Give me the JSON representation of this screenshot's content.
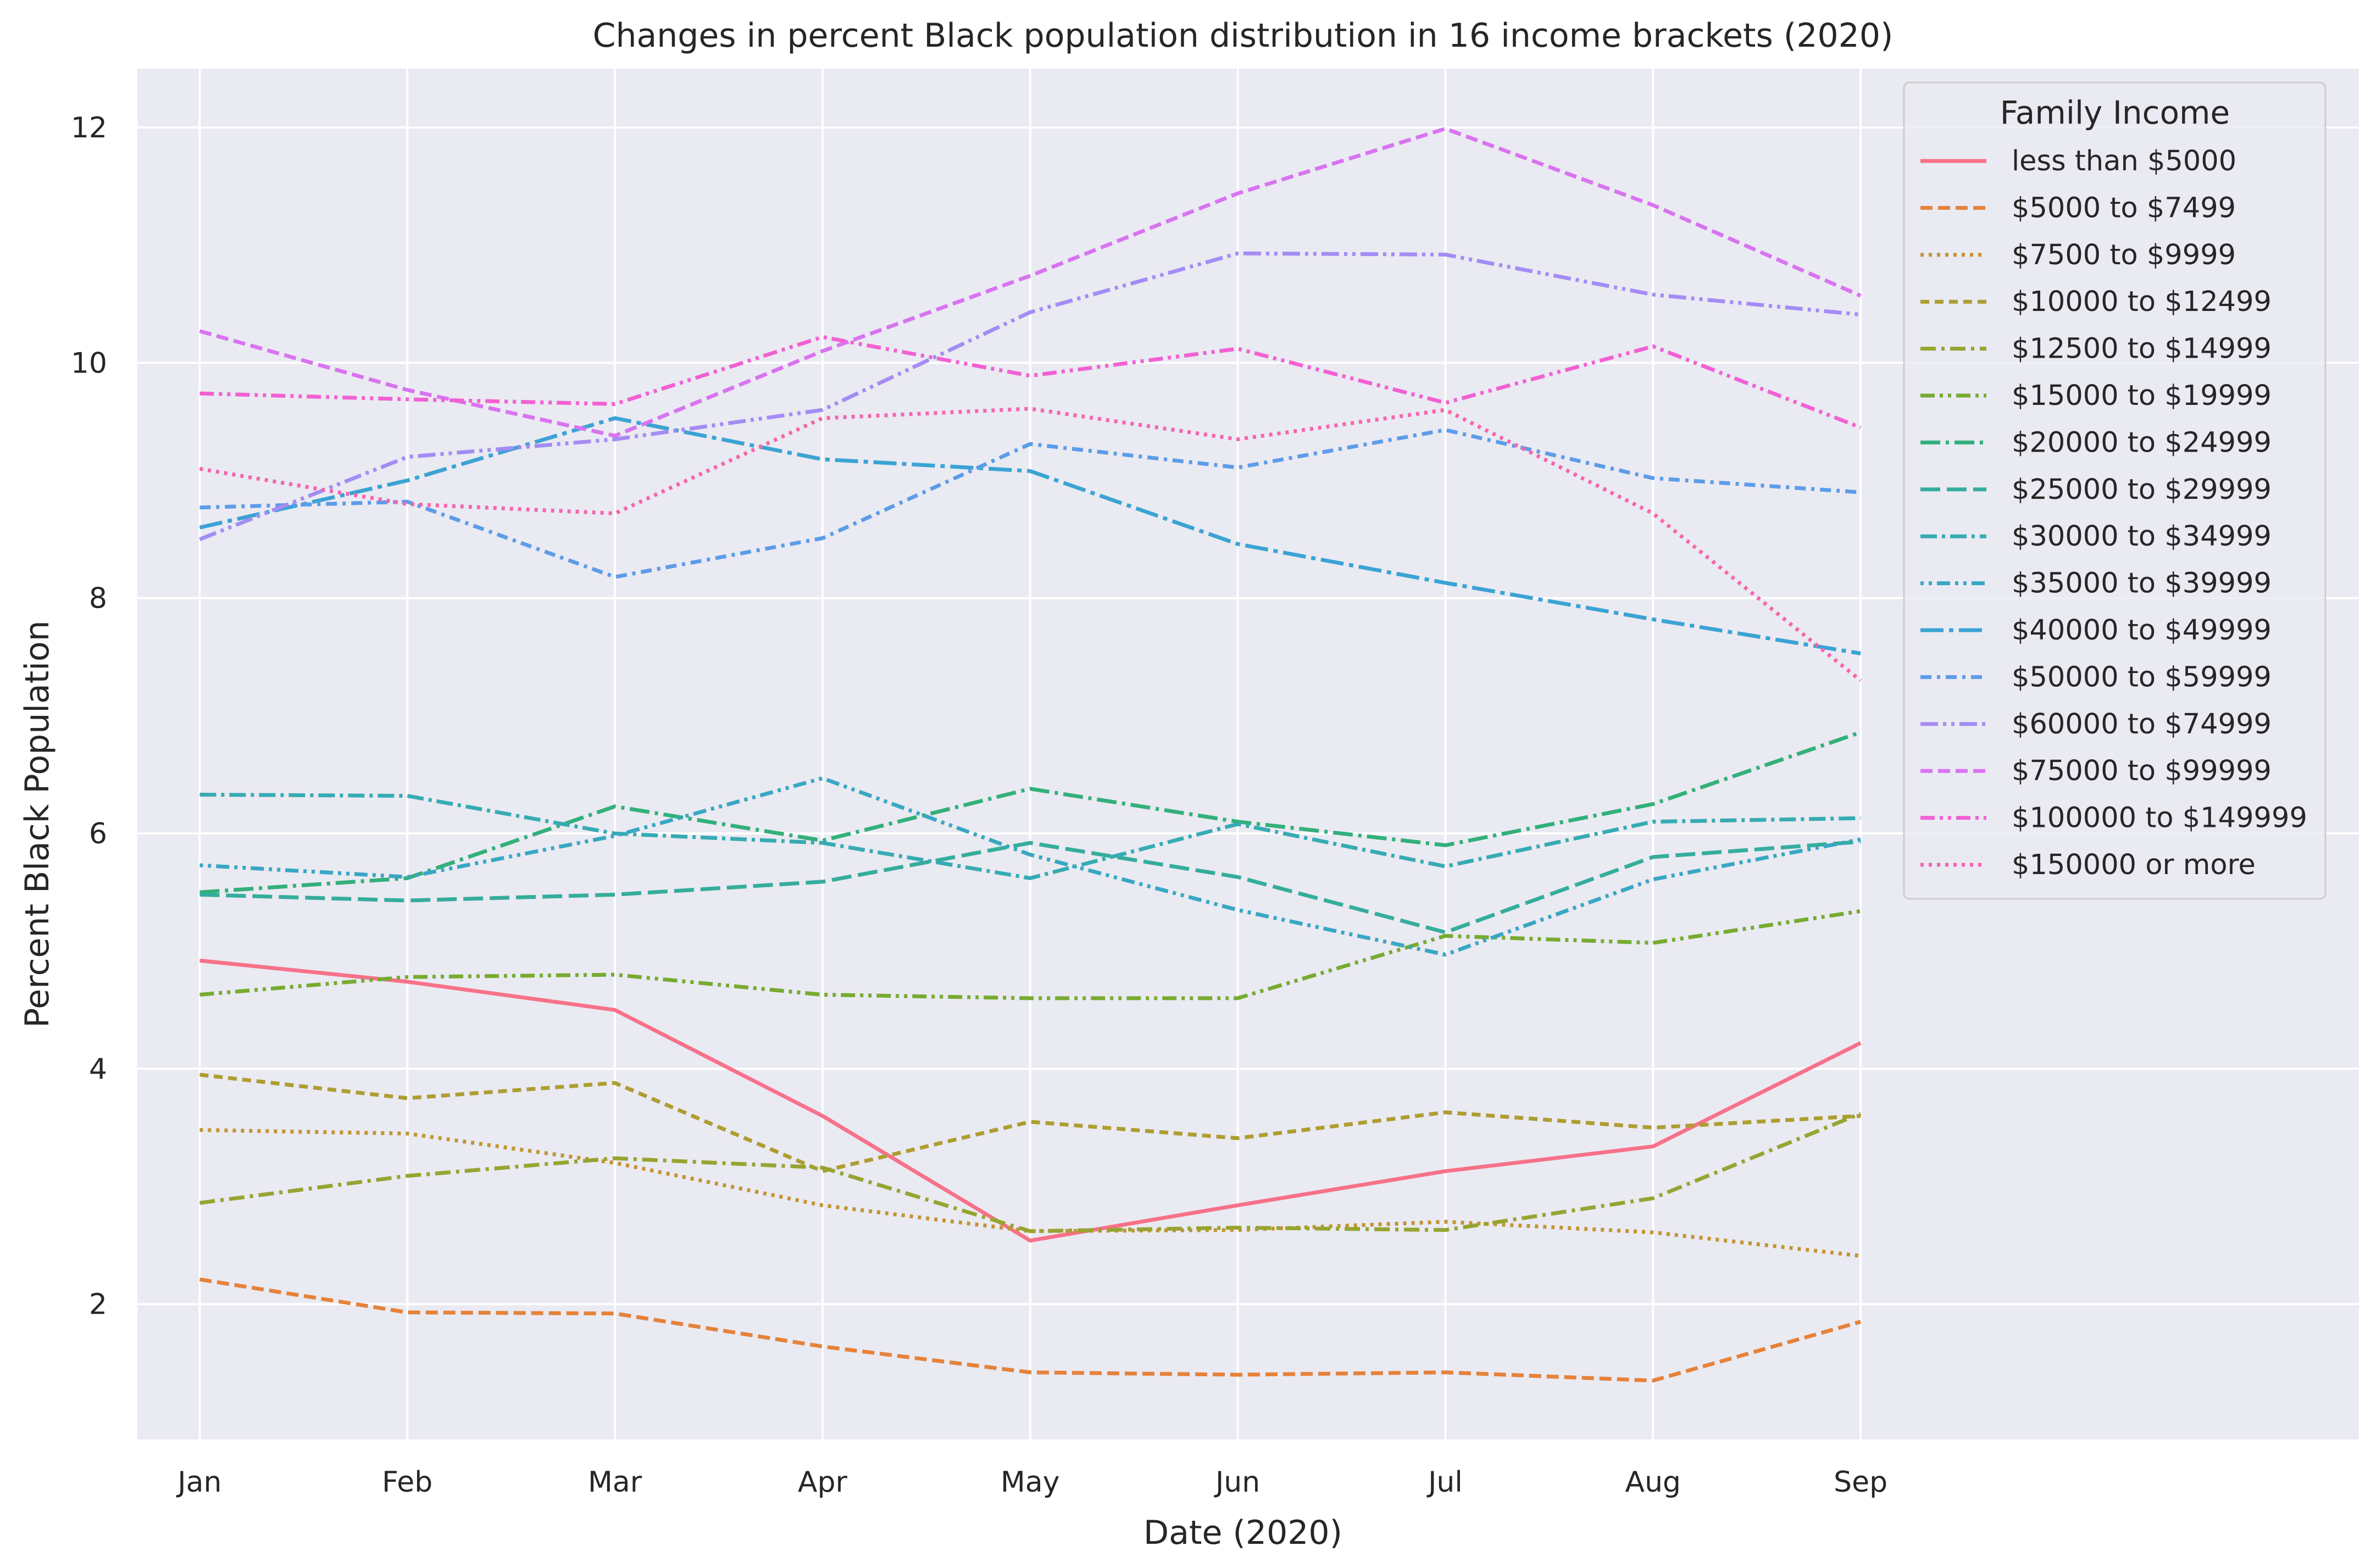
{
  "chart_data": {
    "type": "line",
    "title": "Changes in percent Black population distribution in 16 income brackets (2020)",
    "xlabel": "Date (2020)",
    "ylabel": "Percent Black Population",
    "categories": [
      "Jan",
      "Feb",
      "Mar",
      "Apr",
      "May",
      "Jun",
      "Jul",
      "Aug",
      "Sep"
    ],
    "xlim": [
      -0.3,
      10.4
    ],
    "ylim": [
      0.85,
      12.5
    ],
    "yticks": [
      2,
      4,
      6,
      8,
      10,
      12
    ],
    "grid": true,
    "background": "#eaeaf2",
    "grid_color": "#ffffff",
    "legend": {
      "title": "Family Income",
      "position": "top-right"
    },
    "series": [
      {
        "name": "less than $5000",
        "color": "#f77189",
        "dash": "solid",
        "values": [
          4.92,
          4.74,
          4.5,
          3.6,
          2.54,
          2.84,
          3.13,
          3.34,
          4.22
        ]
      },
      {
        "name": "$5000 to $7499",
        "color": "#e5823a",
        "dash": "dashed",
        "values": [
          2.21,
          1.93,
          1.92,
          1.64,
          1.42,
          1.4,
          1.42,
          1.35,
          1.85
        ]
      },
      {
        "name": "$7500 to $9999",
        "color": "#c39532",
        "dash": "dotted",
        "values": [
          3.48,
          3.45,
          3.2,
          2.84,
          2.62,
          2.63,
          2.7,
          2.61,
          2.41
        ]
      },
      {
        "name": "$10000 to $12499",
        "color": "#ae9d31",
        "dash": "dashed-short",
        "values": [
          3.95,
          3.75,
          3.88,
          3.13,
          3.55,
          3.41,
          3.63,
          3.5,
          3.6
        ]
      },
      {
        "name": "$12500 to $14999",
        "color": "#97a431",
        "dash": "dashdot",
        "values": [
          2.86,
          3.09,
          3.24,
          3.16,
          2.62,
          2.65,
          2.63,
          2.9,
          3.62
        ]
      },
      {
        "name": "$15000 to $19999",
        "color": "#77ab31",
        "dash": "dashdotdot",
        "values": [
          4.63,
          4.78,
          4.8,
          4.63,
          4.6,
          4.6,
          5.13,
          5.07,
          5.34
        ]
      },
      {
        "name": "$20000 to $24999",
        "color": "#33b07a",
        "dash": "longdashdot",
        "values": [
          5.5,
          5.62,
          6.23,
          5.94,
          6.38,
          6.1,
          5.9,
          6.25,
          6.86
        ]
      },
      {
        "name": "$25000 to $29999",
        "color": "#35ad9c",
        "dash": "longdash",
        "values": [
          5.48,
          5.43,
          5.48,
          5.59,
          5.92,
          5.63,
          5.16,
          5.8,
          5.93
        ]
      },
      {
        "name": "$30000 to $34999",
        "color": "#37abb3",
        "dash": "dashdot2",
        "values": [
          6.33,
          6.32,
          6.0,
          5.92,
          5.62,
          6.08,
          5.72,
          6.1,
          6.13
        ]
      },
      {
        "name": "$35000 to $39999",
        "color": "#39a7c3",
        "dash": "dotdash",
        "values": [
          5.73,
          5.63,
          5.98,
          6.47,
          5.82,
          5.35,
          4.97,
          5.61,
          5.95
        ]
      },
      {
        "name": "$40000 to $49999",
        "color": "#3ba3d4",
        "dash": "longdashdot2",
        "values": [
          8.6,
          9.0,
          9.53,
          9.18,
          9.08,
          8.46,
          8.13,
          7.82,
          7.53
        ]
      },
      {
        "name": "$50000 to $59999",
        "color": "#5c9ce8",
        "dash": "dashdot3",
        "values": [
          8.77,
          8.82,
          8.18,
          8.51,
          9.31,
          9.11,
          9.43,
          9.02,
          8.9
        ]
      },
      {
        "name": "$60000 to $74999",
        "color": "#a48cf4",
        "dash": "dashdotdot2",
        "values": [
          8.5,
          9.2,
          9.35,
          9.6,
          10.43,
          10.93,
          10.92,
          10.58,
          10.41
        ]
      },
      {
        "name": "$75000 to $99999",
        "color": "#d874f0",
        "dash": "dashed",
        "values": [
          10.27,
          9.77,
          9.38,
          10.1,
          10.74,
          11.44,
          11.99,
          11.34,
          10.57
        ]
      },
      {
        "name": "$100000 to $149999",
        "color": "#f161d3",
        "dash": "dashdotdot",
        "values": [
          9.74,
          9.69,
          9.65,
          10.22,
          9.89,
          10.12,
          9.66,
          10.14,
          9.45
        ]
      },
      {
        "name": "$150000 or more",
        "color": "#f566ad",
        "dash": "dotted",
        "values": [
          9.1,
          8.8,
          8.72,
          9.53,
          9.61,
          9.35,
          9.6,
          8.72,
          7.3
        ]
      }
    ]
  }
}
